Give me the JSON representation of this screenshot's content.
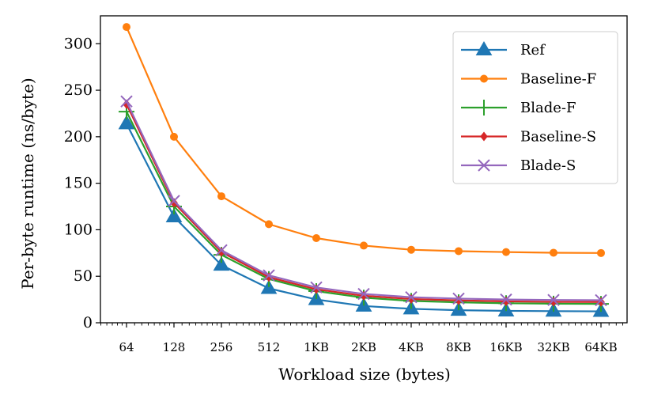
{
  "chart_data": {
    "type": "line",
    "title": "",
    "xlabel": "Workload size (bytes)",
    "ylabel": "Per-byte runtime (ns/byte)",
    "x_scale": "log2",
    "categories": [
      "64",
      "128",
      "256",
      "512",
      "1KB",
      "2KB",
      "4KB",
      "8KB",
      "16KB",
      "32KB",
      "64KB"
    ],
    "x_values": [
      64,
      128,
      256,
      512,
      1024,
      2048,
      4096,
      8192,
      16384,
      32768,
      65536
    ],
    "ylim": [
      0,
      330
    ],
    "yticks": [
      0,
      50,
      100,
      150,
      200,
      250,
      300
    ],
    "legend_position": "top-right",
    "series": [
      {
        "name": "Ref",
        "color": "#1f77b4",
        "marker": "triangle",
        "values": [
          214,
          114,
          62,
          37,
          25,
          18,
          15,
          13.5,
          12.8,
          12.5,
          12.3
        ]
      },
      {
        "name": "Baseline-F",
        "color": "#ff7f0e",
        "marker": "circle",
        "values": [
          318,
          200,
          136,
          106,
          91,
          83,
          78.5,
          77,
          76,
          75.3,
          75
        ]
      },
      {
        "name": "Blade-F",
        "color": "#2ca02c",
        "marker": "plus",
        "values": [
          227,
          125,
          73,
          47,
          34,
          27,
          23.5,
          22,
          21,
          20.5,
          20.3
        ]
      },
      {
        "name": "Baseline-S",
        "color": "#d62728",
        "marker": "diamond",
        "values": [
          235,
          129,
          76,
          49,
          36,
          29,
          25.5,
          24,
          23,
          22.5,
          22.3
        ]
      },
      {
        "name": "Blade-S",
        "color": "#9467bd",
        "marker": "x",
        "values": [
          238,
          131,
          78,
          51,
          38,
          31,
          27.5,
          26,
          25,
          24.5,
          24.3
        ]
      }
    ]
  }
}
